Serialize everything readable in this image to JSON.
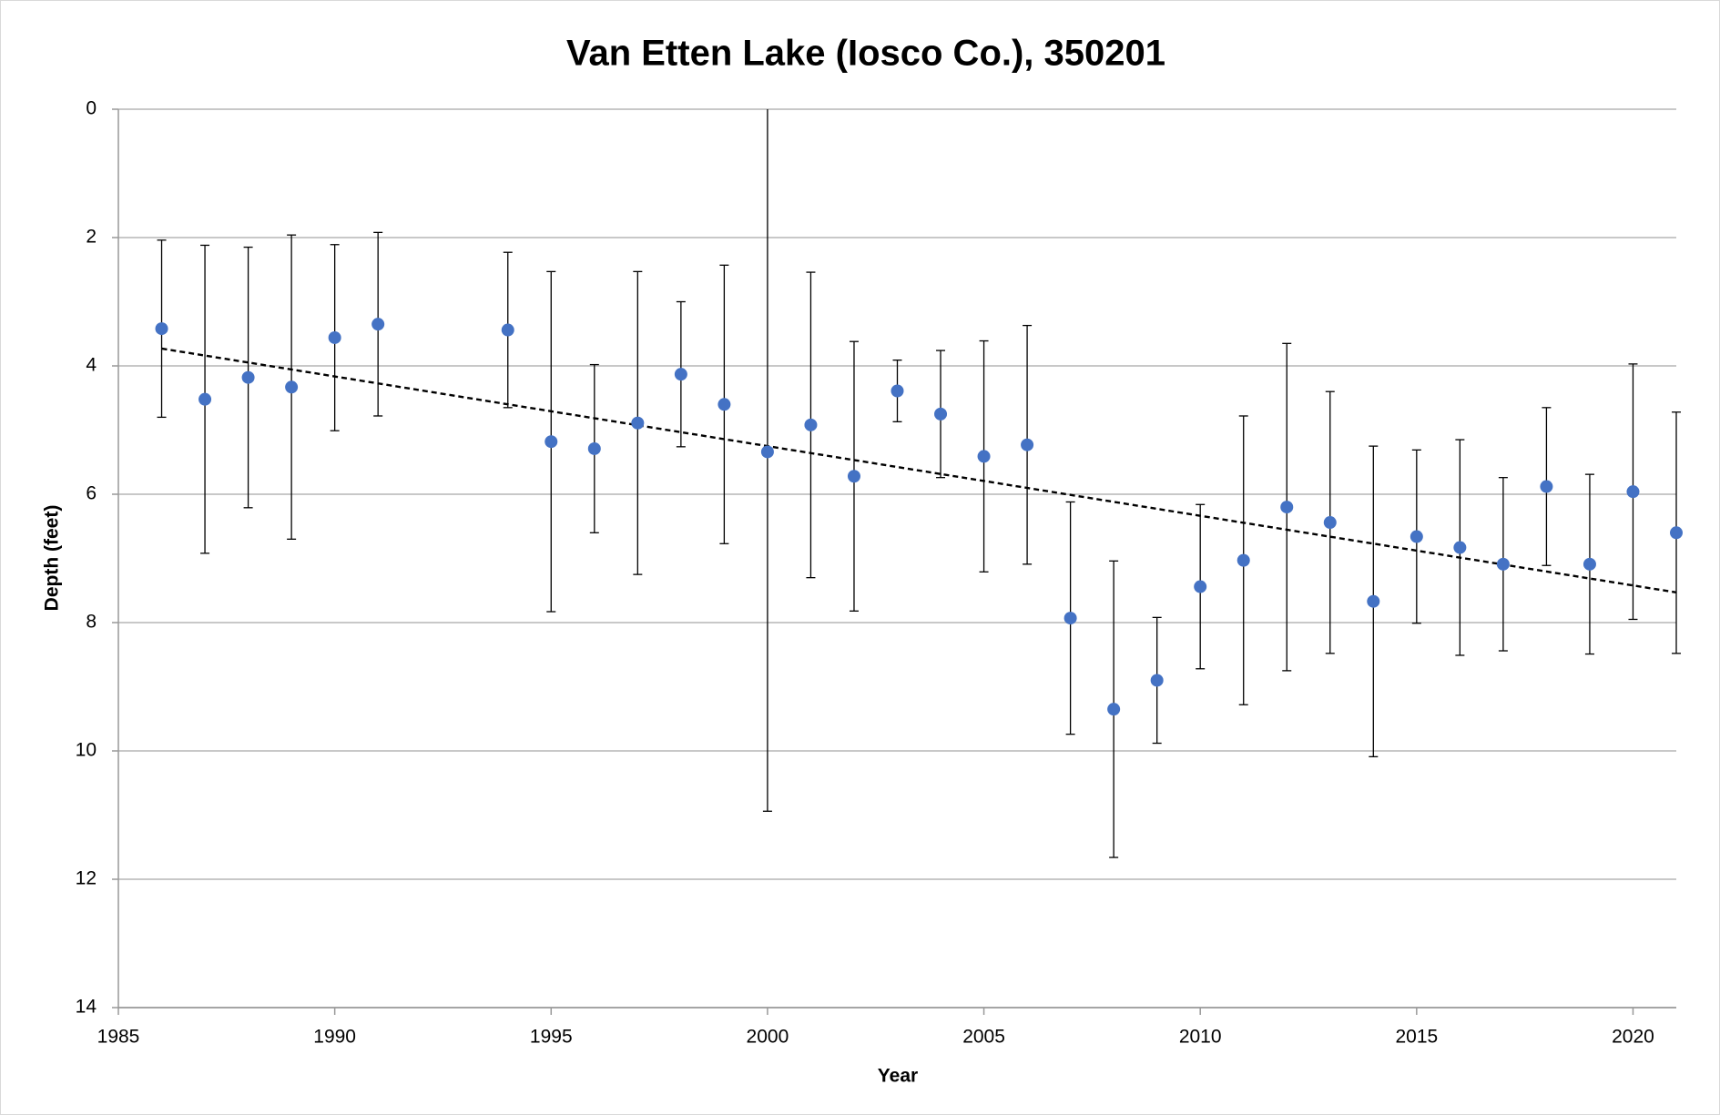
{
  "chart_data": {
    "type": "errorbar_scatter",
    "title": "Van Etten Lake (Iosco Co.), 350201",
    "x_label": "Year",
    "y_label": "Depth (feet)",
    "x": [
      1986,
      1987,
      1988,
      1989,
      1990,
      1991,
      1994,
      1995,
      1996,
      1997,
      1998,
      1999,
      2000,
      2001,
      2002,
      2003,
      2004,
      2005,
      2006,
      2007,
      2008,
      2009,
      2010,
      2011,
      2012,
      2013,
      2014,
      2015,
      2016,
      2017,
      2018,
      2019,
      2020,
      2021
    ],
    "values": [
      3.42,
      4.52,
      4.18,
      4.33,
      3.56,
      3.35,
      3.44,
      5.18,
      5.29,
      4.89,
      4.13,
      4.6,
      5.34,
      4.92,
      5.72,
      4.39,
      4.75,
      5.41,
      5.23,
      7.93,
      9.35,
      8.9,
      7.44,
      7.03,
      6.2,
      6.44,
      7.67,
      6.66,
      6.83,
      7.09,
      5.88,
      7.09,
      5.96,
      6.6
    ],
    "errors": [
      1.38,
      2.4,
      2.03,
      2.37,
      1.45,
      1.43,
      1.21,
      2.65,
      1.31,
      2.36,
      1.13,
      2.17,
      5.6,
      2.38,
      2.1,
      0.48,
      0.99,
      1.8,
      1.86,
      1.81,
      2.31,
      0.98,
      1.28,
      2.25,
      2.55,
      2.04,
      2.42,
      1.35,
      1.68,
      1.35,
      1.23,
      1.4,
      1.99,
      1.88
    ],
    "color": "#4472c4",
    "trendline": {
      "x": [
        1986,
        2021
      ],
      "values": [
        3.73,
        7.53
      ]
    },
    "xlim": [
      1985,
      2021
    ],
    "ylim": [
      0,
      14
    ],
    "y_inverted": true,
    "xticks": [
      1985,
      1990,
      1995,
      2000,
      2005,
      2010,
      2015,
      2020
    ],
    "yticks": [
      0,
      2,
      4,
      6,
      8,
      10,
      12,
      14
    ],
    "grid": true
  }
}
